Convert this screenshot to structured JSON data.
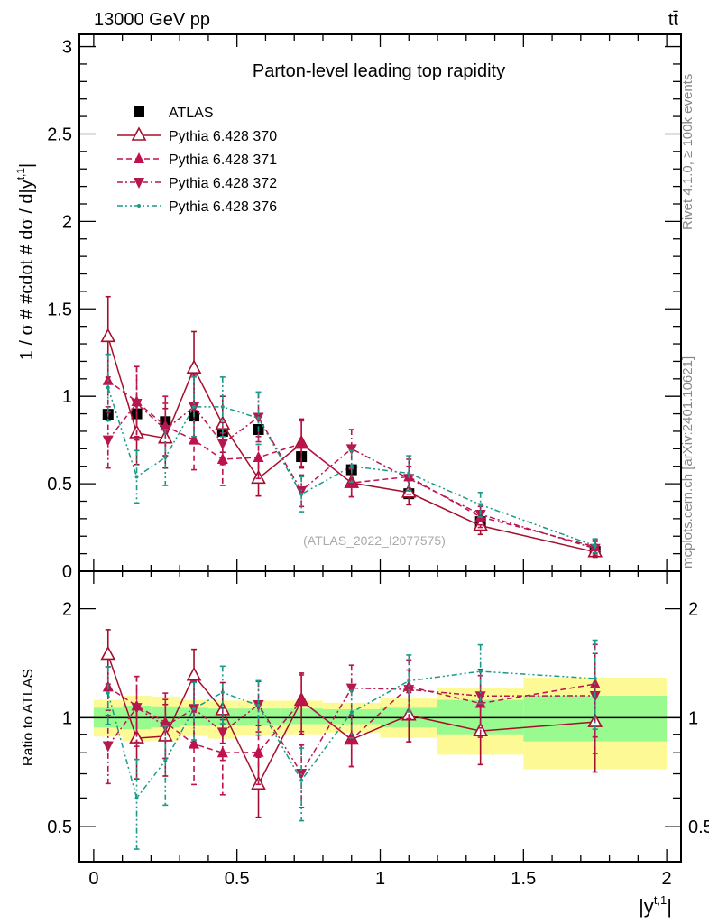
{
  "header": {
    "left": "13000 GeV pp",
    "right": "tt̄"
  },
  "side_labels": {
    "rivet": "Rivet 4.1.0, ≥ 100k events",
    "mcplots": "mcplots.cern.ch [arXiv:2401.10621]"
  },
  "chart_data": {
    "type": "scatter",
    "title": "Parton-level leading top rapidity",
    "watermark": "(ATLAS_2022_I2077575)",
    "xlabel": "|y",
    "xlabel_sup": "t,1",
    "xlabel_end": "|",
    "ylabel": "1 / σ # #cdot # dσ / d|y",
    "ylabel_sup": "t,1",
    "ylabel_end": "|",
    "ratio_ylabel": "Ratio to ATLAS",
    "xlim": [
      -0.05,
      2.05
    ],
    "ylim": [
      0,
      3.07
    ],
    "ratio_ylim": [
      0.4,
      2.54
    ],
    "x_ticks": [
      "0",
      "0.5",
      "1",
      "1.5",
      "2"
    ],
    "x_tick_values": [
      0,
      0.5,
      1,
      1.5,
      2
    ],
    "y_ticks": [
      "0",
      "0.5",
      "1",
      "1.5",
      "2",
      "2.5",
      "3"
    ],
    "y_tick_values": [
      0,
      0.5,
      1,
      1.5,
      2,
      2.5,
      3
    ],
    "ratio_ticks": [
      "0.5",
      "1",
      "2"
    ],
    "ratio_tick_values": [
      0.5,
      1,
      2
    ],
    "legend_position": "top-left",
    "bin_edges": [
      0,
      0.1,
      0.2,
      0.3,
      0.4,
      0.5,
      0.65,
      0.8,
      1.0,
      1.2,
      1.5,
      2.0
    ],
    "x": [
      0.05,
      0.15,
      0.25,
      0.35,
      0.45,
      0.575,
      0.725,
      0.9,
      1.1,
      1.35,
      1.75
    ],
    "band_green": [
      [
        0.94,
        1.065
      ],
      [
        0.93,
        1.08
      ],
      [
        0.94,
        1.075
      ],
      [
        0.95,
        1.065
      ],
      [
        0.95,
        1.06
      ],
      [
        0.955,
        1.06
      ],
      [
        0.96,
        1.06
      ],
      [
        0.96,
        1.055
      ],
      [
        0.94,
        1.065
      ],
      [
        0.9,
        1.12
      ],
      [
        0.86,
        1.15
      ]
    ],
    "band_yellow": [
      [
        0.887,
        1.12
      ],
      [
        0.86,
        1.15
      ],
      [
        0.865,
        1.145
      ],
      [
        0.89,
        1.12
      ],
      [
        0.875,
        1.115
      ],
      [
        0.895,
        1.115
      ],
      [
        0.9,
        1.115
      ],
      [
        0.91,
        1.1
      ],
      [
        0.88,
        1.13
      ],
      [
        0.79,
        1.21
      ],
      [
        0.72,
        1.29
      ]
    ],
    "series": [
      {
        "name": "ATLAS",
        "color": "#000000",
        "marker": "square",
        "dash": "",
        "values": [
          0.897,
          0.9,
          0.855,
          0.887,
          0.8,
          0.81,
          0.655,
          0.58,
          0.443,
          0.283,
          0.113
        ],
        "errors": [
          0.02,
          0.02,
          0.02,
          0.02,
          0.02,
          0.02,
          0.02,
          0.015,
          0.012,
          0.01,
          0.006
        ]
      },
      {
        "name": "Pythia 6.428 370",
        "color": "#a50f2d",
        "marker": "open-triangle-up",
        "dash": "",
        "values": [
          1.34,
          0.79,
          0.76,
          1.16,
          0.84,
          0.53,
          0.73,
          0.505,
          0.45,
          0.26,
          0.11
        ],
        "errors": [
          0.23,
          0.18,
          0.17,
          0.21,
          0.16,
          0.1,
          0.14,
          0.08,
          0.07,
          0.05,
          0.03
        ]
      },
      {
        "name": "Pythia 6.428 371",
        "color": "#c0114f",
        "marker": "triangle-up",
        "dash": "6,4",
        "values": [
          1.09,
          0.97,
          0.83,
          0.75,
          0.64,
          0.65,
          0.73,
          0.505,
          0.54,
          0.31,
          0.14
        ],
        "errors": [
          0.15,
          0.2,
          0.17,
          0.17,
          0.15,
          0.12,
          0.13,
          0.08,
          0.1,
          0.06,
          0.04
        ]
      },
      {
        "name": "Pythia 6.428 372",
        "color": "#b5174f",
        "marker": "triangle-down",
        "dash": "6,3,2,3",
        "values": [
          0.75,
          0.96,
          0.81,
          0.94,
          0.73,
          0.88,
          0.46,
          0.7,
          0.53,
          0.325,
          0.13
        ],
        "errors": [
          0.16,
          0.21,
          0.15,
          0.18,
          0.12,
          0.14,
          0.09,
          0.11,
          0.07,
          0.06,
          0.04
        ]
      },
      {
        "name": "Pythia 6.428 376",
        "color": "#1a9a88",
        "marker": "dot",
        "dash": "6,3,2,3,2,3",
        "values": [
          1.05,
          0.54,
          0.65,
          0.94,
          0.94,
          0.875,
          0.44,
          0.6,
          0.56,
          0.38,
          0.145
        ],
        "errors": [
          0.19,
          0.15,
          0.16,
          0.17,
          0.17,
          0.15,
          0.1,
          0.09,
          0.1,
          0.07,
          0.04
        ]
      }
    ]
  }
}
